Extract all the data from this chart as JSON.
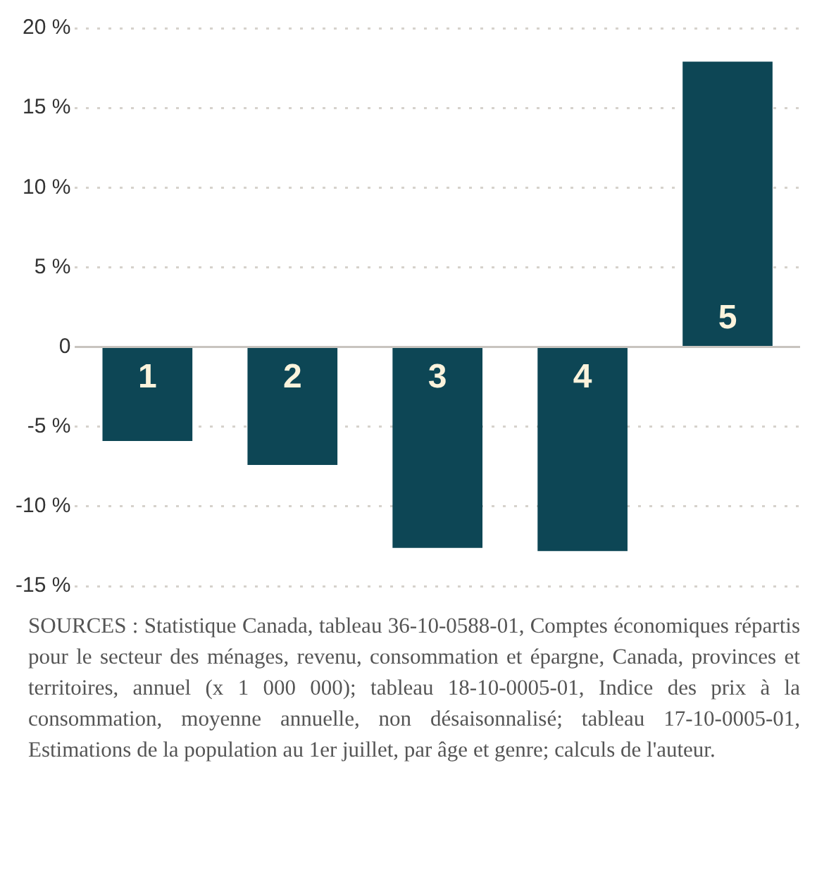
{
  "chart_data": {
    "type": "bar",
    "categories": [
      "1",
      "2",
      "3",
      "4",
      "5"
    ],
    "values": [
      -5.9,
      -7.4,
      -12.6,
      -12.8,
      17.9
    ],
    "color": "#0d4655",
    "ylim": [
      -15,
      20
    ],
    "yticks": [
      {
        "value": -15,
        "label": "-15 %"
      },
      {
        "value": -10,
        "label": "-10 %"
      },
      {
        "value": -5,
        "label": "-5 %"
      },
      0,
      {
        "value": 5,
        "label": "5 %"
      },
      {
        "value": 10,
        "label": "10 %"
      },
      {
        "value": 15,
        "label": "15 %"
      },
      {
        "value": 20,
        "label": "20 %"
      }
    ],
    "grid": "y",
    "annotations": [
      "SOURCES : Statistique Canada, tableau 36-10-0588-01, Comptes économiques répartis pour le secteur des ménages, revenu, consommation et épargne, Canada, provinces et territoires, annuel (x 1 000 000); tableau 18-10-0005-01, Indice des prix à la consommation, moyenne annuelle, non désaisonnalisé; tableau 17-10-0005-01, Estimations de la population au 1er juillet, par âge et genre; calculs de l'auteur."
    ]
  }
}
